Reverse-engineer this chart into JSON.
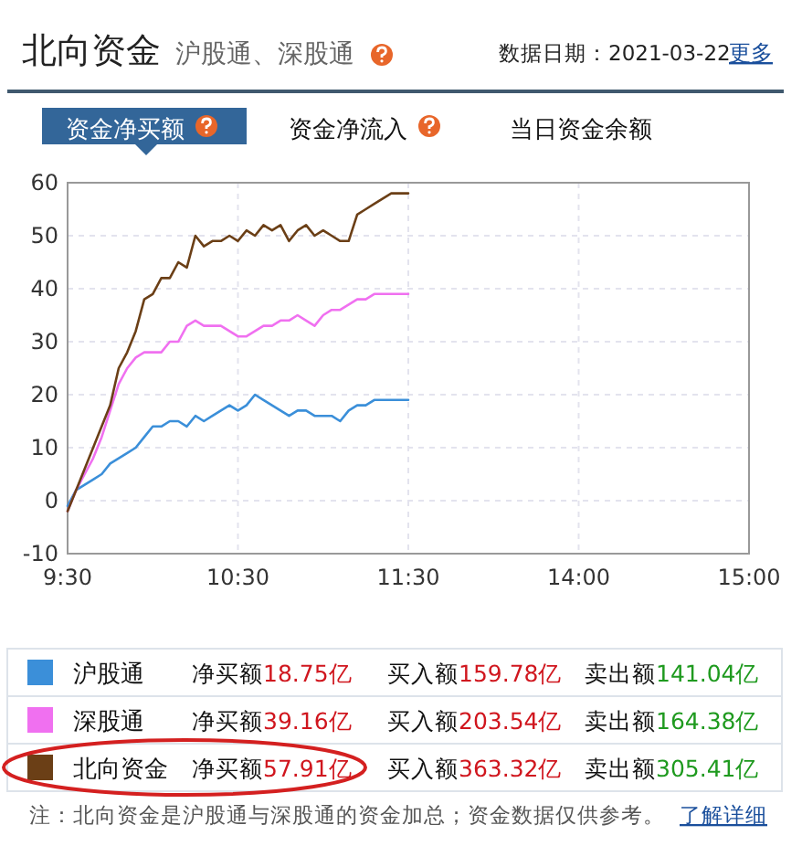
{
  "chart_data": {
    "type": "line",
    "title": "北向资金",
    "subtitle": "沪股通、深股通",
    "annotations": [
      "数据日期：2021-03-22",
      "更多",
      "资金净买额",
      "资金净流入",
      "当日资金余额",
      "净买额18.75亿",
      "买入额159.78亿",
      "卖出额141.04亿",
      "净买额39.16亿",
      "买入额203.54亿",
      "卖出额164.38亿",
      "净买额57.91亿",
      "买入额363.32亿",
      "卖出额305.41亿",
      "注：北向资金是沪股通与深股通的资金加总；资金数据仅供参考。",
      "了解详细"
    ],
    "categories": [
      "9:30",
      null,
      null,
      null,
      null,
      null,
      null,
      null,
      null,
      null,
      null,
      null,
      null,
      null,
      null,
      null,
      null,
      null,
      null,
      null,
      "10:30",
      null,
      null,
      null,
      null,
      null,
      null,
      null,
      null,
      null,
      null,
      null,
      null,
      null,
      null,
      null,
      null,
      null,
      null,
      null,
      "11:30",
      null,
      null,
      null,
      null,
      null,
      null,
      null,
      null,
      null,
      null,
      null,
      null,
      null,
      null,
      null,
      null,
      null,
      null,
      null,
      "14:00",
      null,
      null,
      null,
      null,
      null,
      null,
      null,
      null,
      null,
      null,
      null,
      null,
      null,
      null,
      null,
      null,
      null,
      null,
      null,
      "15:00"
    ],
    "ylim": [
      -10,
      60
    ],
    "yticks": [
      -10,
      0,
      10,
      20,
      30,
      40,
      50,
      60
    ],
    "grid": true,
    "legend": "bottom",
    "marker": "none",
    "line_style": "solid",
    "series": [
      {
        "name": "沪股通",
        "color": "#3b8fd9",
        "values": [
          -1,
          2,
          3,
          4,
          5,
          7,
          8,
          9,
          10,
          12,
          14,
          14,
          15,
          15,
          14,
          16,
          15,
          16,
          17,
          18,
          17,
          18,
          20,
          19,
          18,
          17,
          16,
          17,
          17,
          16,
          16,
          16,
          15,
          17,
          18,
          18,
          19,
          19,
          19,
          19,
          19,
          null,
          null,
          null,
          null,
          null,
          null,
          null,
          null,
          null,
          null,
          null,
          null,
          null,
          null,
          null,
          null,
          null,
          null,
          null,
          null,
          null,
          null,
          null,
          null,
          null,
          null,
          null,
          null,
          null,
          null,
          null,
          null,
          null,
          null,
          null,
          null,
          null,
          null,
          null,
          null
        ]
      },
      {
        "name": "深股通",
        "color": "#f070f0",
        "values": [
          -2,
          2,
          5,
          8,
          12,
          17,
          22,
          25,
          27,
          28,
          28,
          28,
          30,
          30,
          33,
          34,
          33,
          33,
          33,
          32,
          31,
          31,
          32,
          33,
          33,
          34,
          34,
          35,
          34,
          33,
          35,
          36,
          36,
          37,
          38,
          38,
          39,
          39,
          39,
          39,
          39,
          null,
          null,
          null,
          null,
          null,
          null,
          null,
          null,
          null,
          null,
          null,
          null,
          null,
          null,
          null,
          null,
          null,
          null,
          null,
          null,
          null,
          null,
          null,
          null,
          null,
          null,
          null,
          null,
          null,
          null,
          null,
          null,
          null,
          null,
          null,
          null,
          null,
          null,
          null,
          null
        ]
      },
      {
        "name": "北向资金",
        "color": "#6b3f16",
        "values": [
          -2,
          2,
          6,
          10,
          14,
          18,
          25,
          28,
          32,
          38,
          39,
          42,
          42,
          45,
          44,
          50,
          48,
          49,
          49,
          50,
          49,
          51,
          50,
          52,
          51,
          52,
          49,
          51,
          52,
          50,
          51,
          50,
          49,
          49,
          54,
          55,
          56,
          57,
          58,
          58,
          58,
          null,
          null,
          null,
          null,
          null,
          null,
          null,
          null,
          null,
          null,
          null,
          null,
          null,
          null,
          null,
          null,
          null,
          null,
          null,
          null,
          null,
          null,
          null,
          null,
          null,
          null,
          null,
          null,
          null,
          null,
          null,
          null,
          null,
          null,
          null,
          null,
          null,
          null,
          null,
          null
        ]
      }
    ]
  }
}
